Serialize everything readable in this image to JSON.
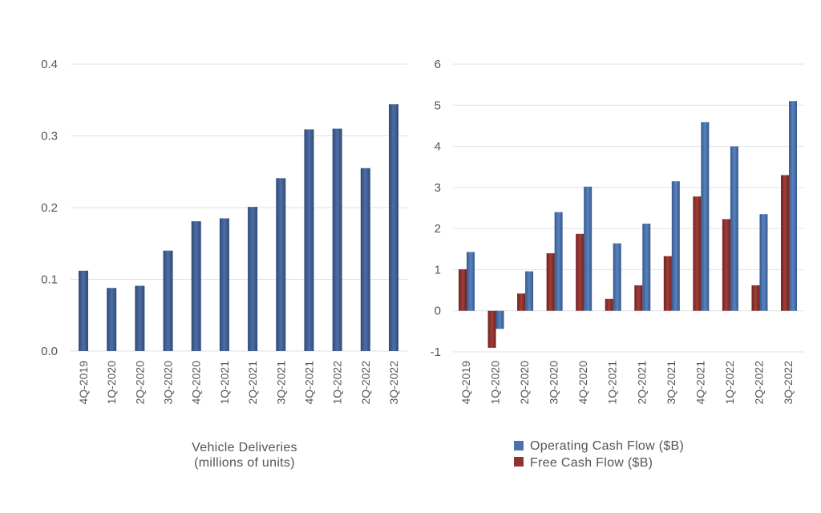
{
  "colors": {
    "deliveries": "#44659a",
    "operating_cash_flow": "#4b72ad",
    "free_cash_flow": "#8f3330",
    "grid": "#e1e1e1",
    "text": "#555555"
  },
  "chart_data": [
    {
      "type": "bar",
      "caption_lines": [
        "Vehicle Deliveries",
        "(millions of units)"
      ],
      "categories": [
        "4Q-2019",
        "1Q-2020",
        "2Q-2020",
        "3Q-2020",
        "4Q-2020",
        "1Q-2021",
        "2Q-2021",
        "3Q-2021",
        "4Q-2021",
        "1Q-2022",
        "2Q-2022",
        "3Q-2022"
      ],
      "series": [
        {
          "values": [
            0.112,
            0.088,
            0.091,
            0.14,
            0.181,
            0.185,
            0.201,
            0.241,
            0.309,
            0.31,
            0.255,
            0.344
          ]
        }
      ],
      "ylim": [
        0,
        0.4
      ],
      "yticks": [
        "0.0",
        "0.1",
        "0.2",
        "0.3",
        "0.4"
      ],
      "grid": true
    },
    {
      "type": "bar",
      "categories": [
        "4Q-2019",
        "1Q-2020",
        "2Q-2020",
        "3Q-2020",
        "4Q-2020",
        "1Q-2021",
        "2Q-2021",
        "3Q-2021",
        "4Q-2021",
        "1Q-2022",
        "2Q-2022",
        "3Q-2022"
      ],
      "series": [
        {
          "name": "Operating Cash Flow ($B)",
          "values": [
            1.43,
            -0.44,
            0.96,
            2.4,
            3.02,
            1.64,
            2.12,
            3.15,
            4.59,
            4.0,
            2.35,
            5.1
          ]
        },
        {
          "name": "Free Cash Flow ($B)",
          "values": [
            1.01,
            -0.9,
            0.42,
            1.4,
            1.87,
            0.29,
            0.62,
            1.33,
            2.78,
            2.23,
            0.62,
            3.3
          ]
        }
      ],
      "ylim": [
        -1,
        6
      ],
      "yticks": [
        "-1",
        "0",
        "1",
        "2",
        "3",
        "4",
        "5",
        "6"
      ],
      "legend_position": "bottom",
      "grid": true
    }
  ]
}
